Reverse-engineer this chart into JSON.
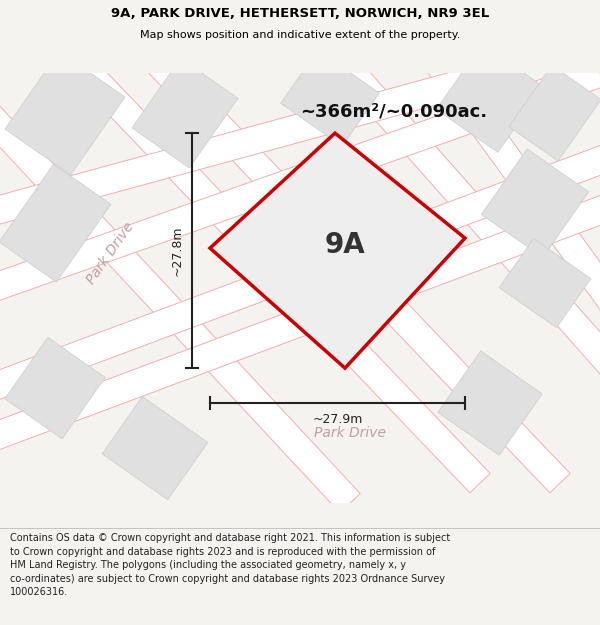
{
  "title_line1": "9A, PARK DRIVE, HETHERSETT, NORWICH, NR9 3EL",
  "title_line2": "Map shows position and indicative extent of the property.",
  "area_label": "~366m²/~0.090ac.",
  "plot_label": "9A",
  "dim_h": "~27.8m",
  "dim_w": "~27.9m",
  "road_label1": "Park Drive",
  "road_label2": "Park Drive",
  "footnote": "Contains OS data © Crown copyright and database right 2021. This information is subject to Crown copyright and database rights 2023 and is reproduced with the permission of HM Land Registry. The polygons (including the associated geometry, namely x, y co-ordinates) are subject to Crown copyright and database rights 2023 Ordnance Survey 100026316.",
  "bg_color": "#f5f3f0",
  "map_bg": "#ffffff",
  "building_color": "#e0e0e0",
  "road_outline_color": "#f0b0b0",
  "road_fill_color": "#ffffff",
  "plot_outline_color": "#cc0000",
  "plot_fill_color": "#eeeeee",
  "dim_color": "#222222",
  "footnote_bg": "#ffffff",
  "title_bg": "#ffffff",
  "road_label_color": "#c0a0a0"
}
